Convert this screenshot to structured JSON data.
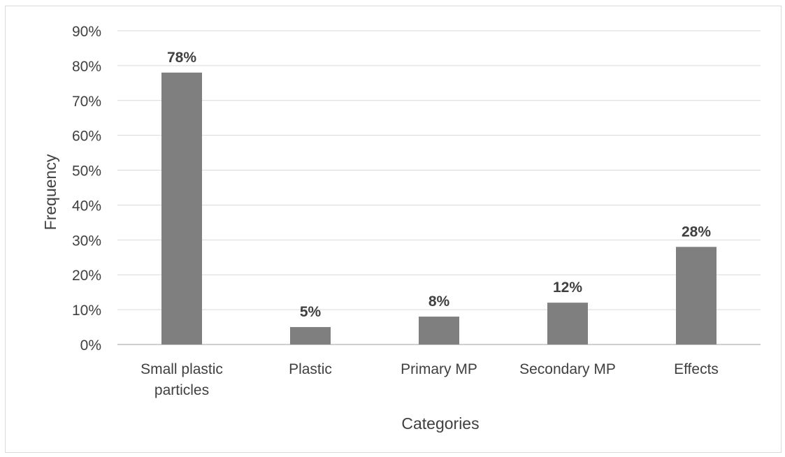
{
  "chart_data": {
    "type": "bar",
    "title": "",
    "xlabel": "Categories",
    "ylabel": "Frequency",
    "categories": [
      "Small plastic particles",
      "Plastic",
      "Primary MP",
      "Secondary MP",
      "Effects"
    ],
    "category_lines": [
      [
        "Small plastic",
        "particles"
      ],
      [
        "Plastic"
      ],
      [
        "Primary MP"
      ],
      [
        "Secondary MP"
      ],
      [
        "Effects"
      ]
    ],
    "values": [
      78,
      5,
      8,
      12,
      28
    ],
    "data_labels": [
      "78%",
      "5%",
      "8%",
      "12%",
      "28%"
    ],
    "ylim": [
      0,
      90
    ],
    "yticks": [
      0,
      10,
      20,
      30,
      40,
      50,
      60,
      70,
      80,
      90
    ],
    "ytick_labels": [
      "0%",
      "10%",
      "20%",
      "30%",
      "40%",
      "50%",
      "60%",
      "70%",
      "80%",
      "90%"
    ],
    "grid": true,
    "legend": "none",
    "colors": {
      "bar": "#7f7f7f",
      "grid": "#d9d9d9",
      "axis": "#bfbfbf",
      "text": "#404040"
    }
  }
}
